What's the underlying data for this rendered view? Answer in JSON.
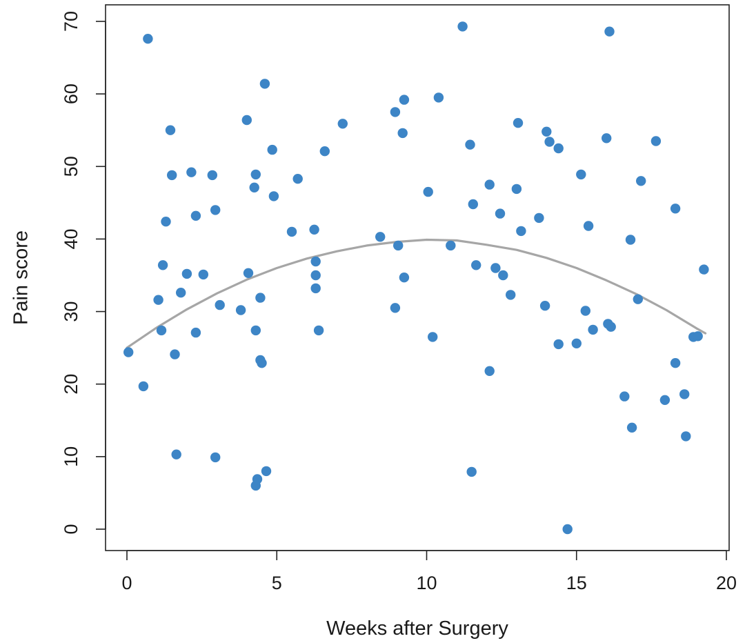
{
  "chart_data": {
    "type": "scatter",
    "title": "",
    "xlabel": "Weeks after Surgery",
    "ylabel": "Pain score",
    "xlim": [
      0,
      20
    ],
    "ylim": [
      0,
      70
    ],
    "x_ticks": [
      "0",
      "5",
      "10",
      "15",
      "20"
    ],
    "y_ticks": [
      "0",
      "10",
      "20",
      "30",
      "40",
      "50",
      "60",
      "70"
    ],
    "grid": false,
    "legend": "none",
    "point_color": "#3d85c6",
    "fit_color": "#a6a6a6",
    "points": {
      "x": [
        0.05,
        0.55,
        0.7,
        1.05,
        1.15,
        1.2,
        1.3,
        1.45,
        1.5,
        1.6,
        1.65,
        1.8,
        2.0,
        2.15,
        2.3,
        2.3,
        2.55,
        2.85,
        2.95,
        2.95,
        3.1,
        3.8,
        4.0,
        4.05,
        4.25,
        4.3,
        4.3,
        4.3,
        4.35,
        4.45,
        4.45,
        4.5,
        4.6,
        4.65,
        4.85,
        4.9,
        5.5,
        5.7,
        6.25,
        6.3,
        6.3,
        6.3,
        6.4,
        6.6,
        7.2,
        8.45,
        8.95,
        8.95,
        9.05,
        9.2,
        9.25,
        9.25,
        10.05,
        10.2,
        10.4,
        10.8,
        11.2,
        11.45,
        11.5,
        11.55,
        11.65,
        12.1,
        12.1,
        12.3,
        12.45,
        12.55,
        12.8,
        13.0,
        13.05,
        13.15,
        13.75,
        13.95,
        14.0,
        14.1,
        14.4,
        14.4,
        14.7,
        15.0,
        15.15,
        15.3,
        15.4,
        15.55,
        16.0,
        16.05,
        16.1,
        16.15,
        16.6,
        16.8,
        16.85,
        17.05,
        17.15,
        17.65,
        17.95,
        18.3,
        18.3,
        18.6,
        18.65,
        18.9,
        19.05,
        19.25
      ],
      "y": [
        24.4,
        19.7,
        67.6,
        31.6,
        27.4,
        36.4,
        42.4,
        55.0,
        48.8,
        24.1,
        10.3,
        32.6,
        35.2,
        49.2,
        27.1,
        43.2,
        35.1,
        48.8,
        44.0,
        9.9,
        30.9,
        30.2,
        56.4,
        35.3,
        47.1,
        48.9,
        6.0,
        27.4,
        6.9,
        31.9,
        23.3,
        22.9,
        61.4,
        8.0,
        52.3,
        45.9,
        41.0,
        48.3,
        41.3,
        36.9,
        35.0,
        33.2,
        27.4,
        52.1,
        55.9,
        40.3,
        57.5,
        30.5,
        39.1,
        54.6,
        59.2,
        34.7,
        46.5,
        26.5,
        59.5,
        39.1,
        69.3,
        53.0,
        7.9,
        44.8,
        36.4,
        47.5,
        21.8,
        36.0,
        43.5,
        35.0,
        32.3,
        46.9,
        56.0,
        41.1,
        42.9,
        30.8,
        54.8,
        53.4,
        52.5,
        25.5,
        0.0,
        25.6,
        48.9,
        30.1,
        41.8,
        27.5,
        53.9,
        28.3,
        68.6,
        27.9,
        18.3,
        39.9,
        14.0,
        31.7,
        48.0,
        53.5,
        17.8,
        44.2,
        22.9,
        18.6,
        12.8,
        26.5,
        26.6,
        35.8
      ]
    },
    "fit_curve": {
      "type": "quadratic",
      "x": [
        0,
        1,
        2,
        3,
        4,
        5,
        6,
        7,
        8,
        9,
        10,
        11,
        12,
        13,
        14,
        15,
        16,
        17,
        18,
        19,
        19.3
      ],
      "y": [
        25.0,
        27.8,
        30.3,
        32.5,
        34.4,
        36.0,
        37.3,
        38.3,
        39.1,
        39.6,
        39.9,
        39.8,
        39.2,
        38.5,
        37.4,
        36.0,
        34.3,
        32.4,
        30.2,
        27.7,
        27.0
      ]
    }
  }
}
